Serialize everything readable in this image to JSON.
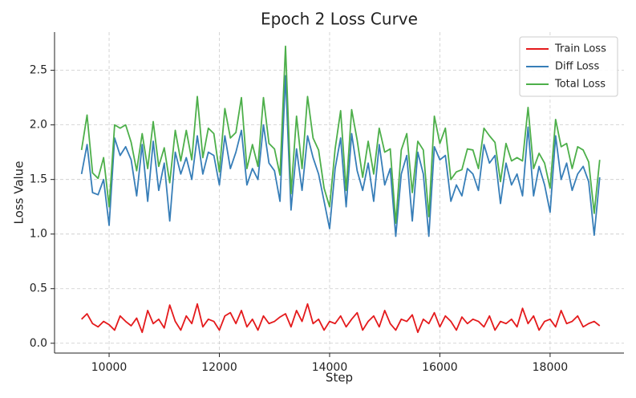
{
  "chart_data": {
    "type": "line",
    "title": "Epoch 2 Loss Curve",
    "x_label": "Step",
    "y_label": "Loss Value",
    "x": [
      9500,
      9600,
      9700,
      9800,
      9900,
      10000,
      10100,
      10200,
      10300,
      10400,
      10500,
      10600,
      10700,
      10800,
      10900,
      11000,
      11100,
      11200,
      11300,
      11400,
      11500,
      11600,
      11700,
      11800,
      11900,
      12000,
      12100,
      12200,
      12300,
      12400,
      12500,
      12600,
      12700,
      12800,
      12900,
      13000,
      13100,
      13200,
      13300,
      13400,
      13500,
      13600,
      13700,
      13800,
      13900,
      14000,
      14100,
      14200,
      14300,
      14400,
      14500,
      14600,
      14700,
      14800,
      14900,
      15000,
      15100,
      15200,
      15300,
      15400,
      15500,
      15600,
      15700,
      15800,
      15900,
      16000,
      16100,
      16200,
      16300,
      16400,
      16500,
      16600,
      16700,
      16800,
      16900,
      17000,
      17100,
      17200,
      17300,
      17400,
      17500,
      17600,
      17700,
      17800,
      17900,
      18000,
      18100,
      18200,
      18300,
      18400,
      18500,
      18600,
      18700,
      18800,
      18900
    ],
    "series": [
      {
        "name": "Train Loss",
        "color": "#e41a1c",
        "values": [
          0.22,
          0.27,
          0.18,
          0.15,
          0.2,
          0.17,
          0.12,
          0.25,
          0.2,
          0.16,
          0.23,
          0.1,
          0.3,
          0.18,
          0.22,
          0.14,
          0.35,
          0.2,
          0.12,
          0.25,
          0.18,
          0.36,
          0.15,
          0.22,
          0.2,
          0.12,
          0.25,
          0.28,
          0.18,
          0.3,
          0.15,
          0.22,
          0.12,
          0.25,
          0.18,
          0.2,
          0.24,
          0.27,
          0.15,
          0.3,
          0.2,
          0.36,
          0.18,
          0.22,
          0.12,
          0.2,
          0.18,
          0.25,
          0.15,
          0.22,
          0.28,
          0.12,
          0.2,
          0.25,
          0.15,
          0.3,
          0.18,
          0.12,
          0.22,
          0.2,
          0.26,
          0.1,
          0.22,
          0.18,
          0.28,
          0.15,
          0.25,
          0.2,
          0.12,
          0.24,
          0.18,
          0.22,
          0.2,
          0.15,
          0.25,
          0.12,
          0.2,
          0.18,
          0.22,
          0.15,
          0.32,
          0.18,
          0.25,
          0.12,
          0.2,
          0.22,
          0.15,
          0.3,
          0.18,
          0.2,
          0.25,
          0.15,
          0.18,
          0.2,
          0.16
        ]
      },
      {
        "name": "Diff Loss",
        "color": "#377eb8",
        "values": [
          1.55,
          1.82,
          1.38,
          1.36,
          1.5,
          1.08,
          1.88,
          1.72,
          1.8,
          1.68,
          1.35,
          1.82,
          1.3,
          1.85,
          1.4,
          1.65,
          1.12,
          1.75,
          1.55,
          1.7,
          1.5,
          1.9,
          1.55,
          1.75,
          1.72,
          1.45,
          1.9,
          1.6,
          1.75,
          1.95,
          1.45,
          1.6,
          1.5,
          2.0,
          1.65,
          1.58,
          1.3,
          2.45,
          1.22,
          1.78,
          1.4,
          1.9,
          1.7,
          1.55,
          1.3,
          1.05,
          1.6,
          1.88,
          1.25,
          1.92,
          1.58,
          1.4,
          1.65,
          1.3,
          1.82,
          1.45,
          1.6,
          0.98,
          1.55,
          1.72,
          1.12,
          1.75,
          1.55,
          0.98,
          1.8,
          1.68,
          1.72,
          1.3,
          1.45,
          1.35,
          1.6,
          1.55,
          1.4,
          1.82,
          1.65,
          1.72,
          1.28,
          1.65,
          1.45,
          1.55,
          1.35,
          1.98,
          1.35,
          1.62,
          1.45,
          1.2,
          1.9,
          1.5,
          1.65,
          1.4,
          1.55,
          1.62,
          1.48,
          0.99,
          1.52
        ]
      },
      {
        "name": "Total Loss",
        "color": "#4daf4a",
        "values": [
          1.77,
          2.09,
          1.56,
          1.51,
          1.7,
          1.25,
          2.0,
          1.97,
          2.0,
          1.84,
          1.58,
          1.92,
          1.6,
          2.03,
          1.62,
          1.79,
          1.47,
          1.95,
          1.67,
          1.95,
          1.68,
          2.26,
          1.7,
          1.97,
          1.92,
          1.57,
          2.15,
          1.88,
          1.93,
          2.25,
          1.6,
          1.82,
          1.62,
          2.25,
          1.83,
          1.78,
          1.54,
          2.72,
          1.37,
          2.08,
          1.6,
          2.26,
          1.88,
          1.77,
          1.42,
          1.25,
          1.78,
          2.13,
          1.4,
          2.14,
          1.86,
          1.52,
          1.85,
          1.55,
          1.97,
          1.75,
          1.78,
          1.1,
          1.77,
          1.92,
          1.38,
          1.85,
          1.77,
          1.16,
          2.08,
          1.83,
          1.97,
          1.5,
          1.57,
          1.59,
          1.78,
          1.77,
          1.6,
          1.97,
          1.9,
          1.84,
          1.48,
          1.83,
          1.67,
          1.7,
          1.67,
          2.16,
          1.6,
          1.74,
          1.65,
          1.42,
          2.05,
          1.8,
          1.83,
          1.6,
          1.8,
          1.77,
          1.66,
          1.19,
          1.68
        ]
      }
    ],
    "xlim": [
      9010,
      19340
    ],
    "xticks": [
      10000,
      12000,
      14000,
      16000,
      18000
    ],
    "ylim": [
      -0.09,
      2.85
    ],
    "yticks": [
      {
        "value": 0,
        "label": "0.0"
      },
      0.5,
      {
        "value": 1,
        "label": "1.0"
      },
      1.5,
      {
        "value": 2,
        "label": "2.0"
      },
      2.5
    ],
    "grid": true,
    "legend": "upper right"
  }
}
